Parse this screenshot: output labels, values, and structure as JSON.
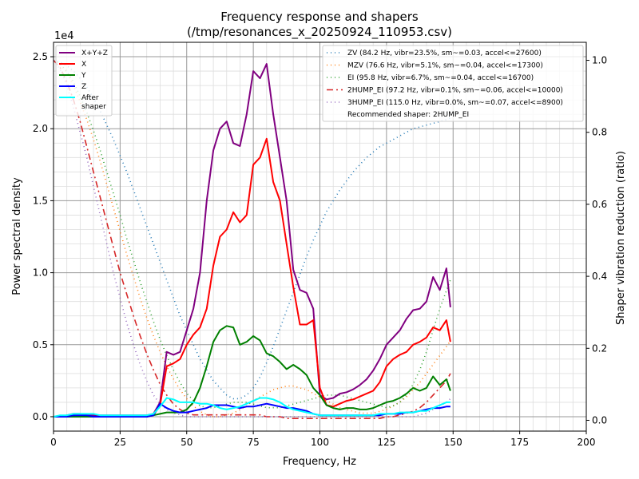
{
  "chart_data": {
    "type": "line",
    "title": "Frequency response and shapers",
    "subtitle": "(/tmp/resonances_x_20250924_110953.csv)",
    "xlabel": "Frequency, Hz",
    "ylabel": "Power spectral density",
    "y2label": "Shaper vibration reduction (ratio)",
    "y_exponent": "1e4",
    "xlim": [
      0,
      200
    ],
    "ylim": [
      -0.1,
      2.6
    ],
    "y2lim": [
      -0.03,
      1.05
    ],
    "xticks": [
      0,
      25,
      50,
      75,
      100,
      125,
      150,
      175,
      200
    ],
    "yticks": [
      0.0,
      0.5,
      1.0,
      1.5,
      2.0,
      2.5
    ],
    "y2ticks": [
      0.0,
      0.2,
      0.4,
      0.6,
      0.8,
      1.0
    ],
    "grid": true,
    "legend_left_position": "top-left",
    "legend_right_position": "top-right",
    "recommended_text": "Recommended shaper: 2HUMP_EI",
    "x": [
      0,
      2.5,
      5,
      7.5,
      10,
      12.5,
      15,
      17.5,
      20,
      22.5,
      25,
      27.5,
      30,
      32.5,
      35,
      37.5,
      40,
      42.5,
      45,
      47.5,
      50,
      52.5,
      55,
      57.5,
      60,
      62.5,
      65,
      67.5,
      70,
      72.5,
      75,
      77.5,
      80,
      82.5,
      85,
      87.5,
      90,
      92.5,
      95,
      97.5,
      100,
      102.5,
      105,
      107.5,
      110,
      112.5,
      115,
      117.5,
      120,
      122.5,
      125,
      127.5,
      130,
      132.5,
      135,
      137.5,
      140,
      142.5,
      145,
      147.5,
      149
    ],
    "series": [
      {
        "name": "X+Y+Z",
        "axis": "left",
        "color": "#800080",
        "dash": "solid",
        "width": 2,
        "values": [
          0,
          0,
          0.01,
          0.02,
          0.02,
          0.01,
          0.01,
          0.01,
          0.01,
          0.01,
          0.01,
          0.01,
          0.01,
          0.01,
          0.01,
          0.02,
          0.1,
          0.45,
          0.43,
          0.45,
          0.6,
          0.75,
          1.0,
          1.5,
          1.85,
          2.0,
          2.05,
          1.9,
          1.88,
          2.1,
          2.4,
          2.35,
          2.45,
          2.1,
          1.8,
          1.5,
          1.02,
          0.88,
          0.86,
          0.75,
          0.15,
          0.12,
          0.13,
          0.16,
          0.17,
          0.19,
          0.22,
          0.26,
          0.32,
          0.4,
          0.5,
          0.55,
          0.6,
          0.68,
          0.74,
          0.75,
          0.8,
          0.97,
          0.88,
          1.03,
          0.76
        ]
      },
      {
        "name": "X",
        "axis": "left",
        "color": "#ff0000",
        "dash": "solid",
        "width": 2,
        "values": [
          0,
          0,
          0,
          0,
          0,
          0,
          0,
          0,
          0,
          0,
          0,
          0,
          0,
          0,
          0,
          0.01,
          0.08,
          0.35,
          0.37,
          0.4,
          0.5,
          0.57,
          0.62,
          0.75,
          1.05,
          1.25,
          1.3,
          1.42,
          1.35,
          1.4,
          1.75,
          1.8,
          1.93,
          1.63,
          1.5,
          1.2,
          0.9,
          0.64,
          0.64,
          0.67,
          0.2,
          0.08,
          0.07,
          0.09,
          0.11,
          0.12,
          0.14,
          0.16,
          0.18,
          0.24,
          0.35,
          0.4,
          0.43,
          0.45,
          0.5,
          0.52,
          0.55,
          0.62,
          0.6,
          0.67,
          0.52
        ]
      },
      {
        "name": "Y",
        "axis": "left",
        "color": "#008000",
        "dash": "solid",
        "width": 2,
        "values": [
          0,
          0,
          0,
          0,
          0,
          0,
          0,
          0,
          0,
          0,
          0,
          0,
          0,
          0,
          0,
          0.01,
          0.02,
          0.03,
          0.03,
          0.03,
          0.05,
          0.1,
          0.2,
          0.35,
          0.52,
          0.6,
          0.63,
          0.62,
          0.5,
          0.52,
          0.56,
          0.53,
          0.44,
          0.42,
          0.38,
          0.33,
          0.36,
          0.33,
          0.29,
          0.2,
          0.15,
          0.08,
          0.06,
          0.05,
          0.06,
          0.06,
          0.05,
          0.05,
          0.06,
          0.08,
          0.1,
          0.11,
          0.13,
          0.16,
          0.2,
          0.18,
          0.2,
          0.28,
          0.22,
          0.26,
          0.18
        ]
      },
      {
        "name": "Z",
        "axis": "left",
        "color": "#0000ff",
        "dash": "solid",
        "width": 2,
        "values": [
          0,
          0,
          0,
          0.01,
          0.01,
          0.01,
          0,
          0,
          0,
          0,
          0,
          0,
          0,
          0,
          0,
          0.01,
          0.09,
          0.06,
          0.04,
          0.03,
          0.03,
          0.04,
          0.05,
          0.06,
          0.08,
          0.08,
          0.08,
          0.07,
          0.06,
          0.07,
          0.07,
          0.08,
          0.09,
          0.08,
          0.07,
          0.06,
          0.06,
          0.05,
          0.04,
          0.02,
          0.01,
          0.01,
          0.01,
          0.01,
          0.01,
          0.01,
          0.01,
          0.01,
          0.01,
          0.01,
          0.02,
          0.02,
          0.02,
          0.03,
          0.03,
          0.04,
          0.05,
          0.06,
          0.06,
          0.07,
          0.07
        ]
      },
      {
        "name": "After\nshaper",
        "axis": "left",
        "color": "#00ffff",
        "dash": "solid",
        "width": 2,
        "values": [
          0,
          0.01,
          0.01,
          0.02,
          0.02,
          0.02,
          0.02,
          0.01,
          0.01,
          0.01,
          0.01,
          0.01,
          0.01,
          0.01,
          0.01,
          0.02,
          0.07,
          0.13,
          0.12,
          0.1,
          0.1,
          0.1,
          0.09,
          0.09,
          0.08,
          0.06,
          0.05,
          0.06,
          0.07,
          0.09,
          0.11,
          0.13,
          0.13,
          0.12,
          0.1,
          0.07,
          0.05,
          0.04,
          0.03,
          0.02,
          0.01,
          0.01,
          0.01,
          0.01,
          0.01,
          0.01,
          0.01,
          0.01,
          0.01,
          0.02,
          0.02,
          0.02,
          0.03,
          0.03,
          0.03,
          0.04,
          0.04,
          0.06,
          0.08,
          0.1,
          0.1
        ]
      },
      {
        "name": "ZV (84.2 Hz, vibr=23.5%, sm~=0.03, accel<=27600)",
        "axis": "right",
        "color": "#1f77b4",
        "dash": "1,4",
        "width": 1.6,
        "values": [
          1.0,
          0.995,
          0.985,
          0.97,
          0.95,
          0.925,
          0.895,
          0.86,
          0.82,
          0.78,
          0.735,
          0.69,
          0.64,
          0.59,
          0.54,
          0.49,
          0.44,
          0.39,
          0.34,
          0.29,
          0.25,
          0.21,
          0.17,
          0.14,
          0.11,
          0.09,
          0.07,
          0.06,
          0.06,
          0.07,
          0.09,
          0.12,
          0.16,
          0.205,
          0.255,
          0.305,
          0.355,
          0.405,
          0.455,
          0.5,
          0.54,
          0.58,
          0.61,
          0.64,
          0.665,
          0.69,
          0.71,
          0.73,
          0.745,
          0.76,
          0.77,
          0.78,
          0.79,
          0.8,
          0.81,
          0.815,
          0.82,
          0.825,
          0.83,
          0.835,
          0.84
        ]
      },
      {
        "name": "MZV (76.6 Hz, vibr=5.1%, sm~=0.04, accel<=17300)",
        "axis": "right",
        "color": "#ff7f0e",
        "dash": "1,4",
        "width": 1.6,
        "values": [
          1.0,
          0.99,
          0.965,
          0.93,
          0.885,
          0.835,
          0.78,
          0.72,
          0.655,
          0.59,
          0.525,
          0.46,
          0.4,
          0.34,
          0.285,
          0.235,
          0.19,
          0.15,
          0.115,
          0.085,
          0.06,
          0.04,
          0.025,
          0.015,
          0.01,
          0.01,
          0.015,
          0.02,
          0.03,
          0.04,
          0.055,
          0.065,
          0.075,
          0.085,
          0.09,
          0.095,
          0.095,
          0.09,
          0.085,
          0.075,
          0.065,
          0.055,
          0.045,
          0.035,
          0.03,
          0.025,
          0.02,
          0.02,
          0.02,
          0.025,
          0.03,
          0.04,
          0.05,
          0.065,
          0.085,
          0.105,
          0.13,
          0.155,
          0.18,
          0.205,
          0.22
        ]
      },
      {
        "name": "EI (95.8 Hz, vibr=6.7%, sm~=0.04, accel<=16700)",
        "axis": "right",
        "color": "#2ca02c",
        "dash": "1,4",
        "width": 1.6,
        "values": [
          1.0,
          0.99,
          0.97,
          0.94,
          0.9,
          0.855,
          0.805,
          0.75,
          0.69,
          0.63,
          0.57,
          0.505,
          0.445,
          0.385,
          0.33,
          0.275,
          0.225,
          0.18,
          0.14,
          0.105,
          0.075,
          0.055,
          0.04,
          0.035,
          0.035,
          0.04,
          0.045,
          0.05,
          0.05,
          0.05,
          0.045,
          0.04,
          0.035,
          0.035,
          0.035,
          0.04,
          0.045,
          0.05,
          0.055,
          0.06,
          0.065,
          0.07,
          0.07,
          0.07,
          0.065,
          0.06,
          0.055,
          0.05,
          0.045,
          0.04,
          0.035,
          0.04,
          0.05,
          0.07,
          0.1,
          0.14,
          0.19,
          0.25,
          0.31,
          0.36,
          0.39
        ]
      },
      {
        "name": "2HUMP_EI (97.2 Hz, vibr=0.1%, sm~=0.06, accel<=10000)",
        "axis": "right",
        "color": "#d62728",
        "dash": "8,4,2,4",
        "width": 1.6,
        "values": [
          1.0,
          0.98,
          0.94,
          0.89,
          0.83,
          0.76,
          0.69,
          0.62,
          0.55,
          0.48,
          0.41,
          0.35,
          0.29,
          0.235,
          0.185,
          0.14,
          0.1,
          0.07,
          0.045,
          0.03,
          0.02,
          0.015,
          0.015,
          0.015,
          0.015,
          0.015,
          0.015,
          0.015,
          0.015,
          0.015,
          0.015,
          0.015,
          0.01,
          0.01,
          0.01,
          0.005,
          0.005,
          0.005,
          0.005,
          0.005,
          0.005,
          0.005,
          0.005,
          0.005,
          0.005,
          0.005,
          0.005,
          0.005,
          0.005,
          0.005,
          0.01,
          0.01,
          0.015,
          0.02,
          0.025,
          0.035,
          0.05,
          0.07,
          0.09,
          0.11,
          0.13
        ]
      },
      {
        "name": "3HUMP_EI (115.0 Hz, vibr=0.0%, sm~=0.07, accel<=8900)",
        "axis": "right",
        "color": "#9467bd",
        "dash": "1,4",
        "width": 1.6,
        "values": [
          1.0,
          0.975,
          0.93,
          0.87,
          0.8,
          0.73,
          0.65,
          0.57,
          0.49,
          0.41,
          0.34,
          0.27,
          0.21,
          0.155,
          0.11,
          0.07,
          0.045,
          0.03,
          0.02,
          0.015,
          0.01,
          0.01,
          0.01,
          0.01,
          0.01,
          0.01,
          0.01,
          0.01,
          0.01,
          0.01,
          0.01,
          0.01,
          0.01,
          0.01,
          0.01,
          0.01,
          0.01,
          0.01,
          0.01,
          0.01,
          0.01,
          0.01,
          0.01,
          0.01,
          0.01,
          0.01,
          0.01,
          0.01,
          0.01,
          0.01,
          0.01,
          0.01,
          0.01,
          0.01,
          0.01,
          0.015,
          0.02,
          0.03,
          0.04,
          0.05,
          0.06
        ]
      }
    ]
  }
}
